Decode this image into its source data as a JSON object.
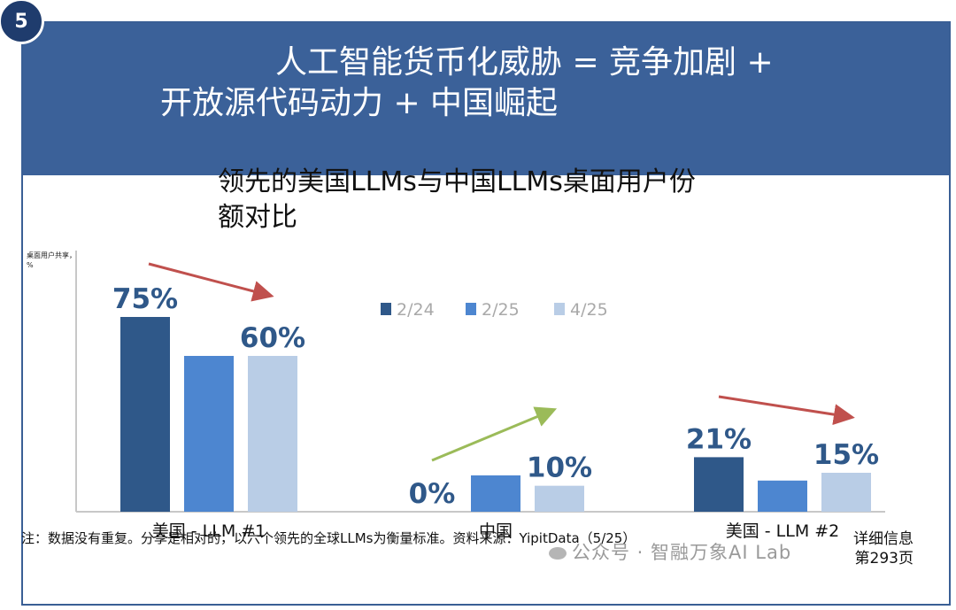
{
  "slide": {
    "number": "5",
    "title_line1": "人工智能货币化威胁 = 竞争加剧 +",
    "title_line2": "开放源代码动力 + 中国崛起"
  },
  "chart_data": {
    "type": "bar",
    "title": "领先的美国LLMs与中国LLMs桌面用户份额对比",
    "ylabel": "桌面用户共享，%",
    "xlabel": "",
    "categories": [
      "美国 - LLM #1",
      "中国",
      "美国 - LLM #2"
    ],
    "series": [
      {
        "name": "2/24",
        "color": "#2f5889",
        "values": [
          75,
          0,
          21
        ]
      },
      {
        "name": "2/25",
        "color": "#4d86d0",
        "values": [
          60,
          14,
          12
        ]
      },
      {
        "name": "4/25",
        "color": "#b9cde6",
        "values": [
          60,
          10,
          15
        ]
      }
    ],
    "data_labels": [
      {
        "category": 0,
        "series": 0,
        "text": "75%"
      },
      {
        "category": 0,
        "series": 2,
        "text": "60%"
      },
      {
        "category": 1,
        "series": 0,
        "text": "0%"
      },
      {
        "category": 1,
        "series": 2,
        "text": "10%"
      },
      {
        "category": 2,
        "series": 0,
        "text": "21%"
      },
      {
        "category": 2,
        "series": 2,
        "text": "15%"
      }
    ],
    "trend_arrows": [
      {
        "category": 0,
        "direction": "down",
        "color": "#c0504d"
      },
      {
        "category": 1,
        "direction": "up",
        "color": "#9bbb59"
      },
      {
        "category": 2,
        "direction": "down",
        "color": "#c0504d"
      }
    ],
    "ylim": [
      0,
      100
    ],
    "legend_position": "top-center",
    "grid": false
  },
  "footer": {
    "note": "注：数据没有重复。分享是相对的，以六个领先的全球LLMs为衡量标准。资料来源：YipitData（5/25）",
    "more_line1": "详细信息",
    "more_line2": "第293页",
    "watermark": "公众号 · 智融万象AI Lab"
  }
}
